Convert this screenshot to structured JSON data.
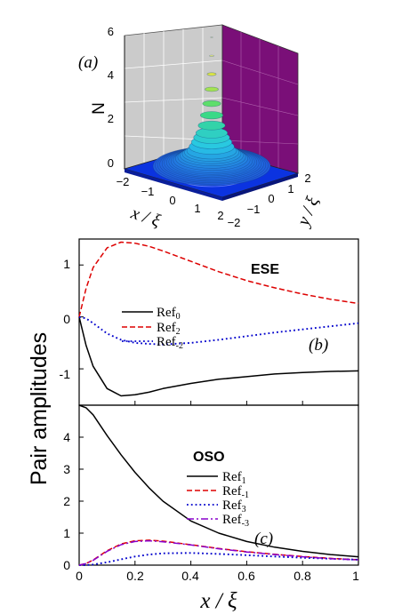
{
  "figure": {
    "ylabel": "Pair amplitudes",
    "xlabel": "x / ξ"
  },
  "chart_data": [
    {
      "type": "surface3d",
      "panel_label": "(a)",
      "zlabel": "N",
      "xlabel": "x / ξ",
      "ylabel": "y / ξ",
      "zlim": [
        0,
        6
      ],
      "z_ticks": [
        "6",
        "4",
        "2",
        "0"
      ],
      "x_ticks": [
        "−2",
        "−1",
        "0",
        "1",
        "2"
      ],
      "y_ticks": [
        "2",
        "1",
        "0",
        "−1",
        "−2"
      ],
      "xlim": [
        -2,
        2
      ],
      "ylim": [
        -2,
        2
      ],
      "peak": {
        "x": 0,
        "y": 0,
        "z": 6.0
      },
      "background_level": 0.1,
      "radial_profile": {
        "r": [
          0,
          0.1,
          0.2,
          0.3,
          0.5,
          0.8,
          1.2,
          2.0
        ],
        "z": [
          6.0,
          4.2,
          2.8,
          1.8,
          0.9,
          0.45,
          0.2,
          0.1
        ]
      }
    },
    {
      "type": "line",
      "panel_label": "(b)",
      "title": "ESE",
      "xlim": [
        0,
        1
      ],
      "ylim": [
        -1.7,
        1.5
      ],
      "y_ticks": [
        "1",
        "0",
        "-1"
      ],
      "grid": false,
      "legend": "center-left",
      "series": [
        {
          "name": "Ref0",
          "color": "#000000",
          "dash": "solid",
          "x": [
            0,
            0.025,
            0.05,
            0.1,
            0.15,
            0.2,
            0.25,
            0.3,
            0.4,
            0.5,
            0.6,
            0.7,
            0.8,
            0.9,
            1.0
          ],
          "y": [
            0,
            -0.55,
            -0.95,
            -1.38,
            -1.52,
            -1.5,
            -1.45,
            -1.38,
            -1.28,
            -1.2,
            -1.15,
            -1.1,
            -1.07,
            -1.05,
            -1.04
          ]
        },
        {
          "name": "Ref2",
          "color": "#dd0000",
          "dash": "dashed",
          "x": [
            0,
            0.025,
            0.05,
            0.1,
            0.15,
            0.2,
            0.25,
            0.3,
            0.4,
            0.5,
            0.6,
            0.7,
            0.8,
            0.9,
            1.0
          ],
          "y": [
            0,
            0.55,
            0.95,
            1.33,
            1.44,
            1.42,
            1.36,
            1.27,
            1.07,
            0.87,
            0.7,
            0.56,
            0.44,
            0.34,
            0.26
          ]
        },
        {
          "name": "Ref-2",
          "color": "#0000cc",
          "dash": "dotted",
          "x": [
            0,
            0.025,
            0.05,
            0.1,
            0.15,
            0.2,
            0.25,
            0.3,
            0.4,
            0.5,
            0.6,
            0.7,
            0.8,
            0.9,
            1.0
          ],
          "y": [
            0,
            -0.03,
            -0.12,
            -0.32,
            -0.44,
            -0.5,
            -0.52,
            -0.53,
            -0.5,
            -0.44,
            -0.37,
            -0.3,
            -0.24,
            -0.18,
            -0.12
          ]
        }
      ]
    },
    {
      "type": "line",
      "panel_label": "(c)",
      "title": "OSO",
      "xlim": [
        0,
        1
      ],
      "ylim": [
        0,
        5
      ],
      "y_ticks": [
        "4",
        "3",
        "2",
        "1",
        "0"
      ],
      "x_ticks": [
        "0",
        "0.2",
        "0.4",
        "0.6",
        "0.8",
        "1"
      ],
      "grid": false,
      "legend": "center",
      "series": [
        {
          "name": "Ref1",
          "color": "#000000",
          "dash": "solid",
          "x": [
            0,
            0.025,
            0.05,
            0.1,
            0.15,
            0.2,
            0.25,
            0.3,
            0.4,
            0.5,
            0.6,
            0.7,
            0.8,
            0.9,
            1.0
          ],
          "y": [
            5.0,
            4.92,
            4.7,
            4.05,
            3.45,
            2.9,
            2.42,
            2.0,
            1.38,
            1.0,
            0.74,
            0.56,
            0.43,
            0.33,
            0.26
          ]
        },
        {
          "name": "Ref-1",
          "color": "#dd0000",
          "dash": "dashed",
          "x": [
            0,
            0.025,
            0.05,
            0.1,
            0.15,
            0.2,
            0.25,
            0.3,
            0.4,
            0.5,
            0.6,
            0.7,
            0.8,
            0.9,
            1.0
          ],
          "y": [
            0,
            0.05,
            0.16,
            0.45,
            0.66,
            0.76,
            0.78,
            0.75,
            0.64,
            0.52,
            0.42,
            0.34,
            0.27,
            0.21,
            0.17
          ]
        },
        {
          "name": "Ref3",
          "color": "#0000cc",
          "dash": "dotted",
          "x": [
            0,
            0.025,
            0.05,
            0.1,
            0.15,
            0.2,
            0.25,
            0.3,
            0.4,
            0.5,
            0.6,
            0.7,
            0.8,
            0.9,
            1.0
          ],
          "y": [
            0,
            0.0,
            0.02,
            0.09,
            0.18,
            0.27,
            0.33,
            0.37,
            0.38,
            0.35,
            0.31,
            0.27,
            0.23,
            0.2,
            0.17
          ]
        },
        {
          "name": "Ref-3",
          "color": "#8800cc",
          "dash": "dashdot",
          "x": [
            0,
            0.025,
            0.05,
            0.1,
            0.15,
            0.2,
            0.25,
            0.3,
            0.4,
            0.5,
            0.6,
            0.7,
            0.8,
            0.9,
            1.0
          ],
          "y": [
            0,
            0.05,
            0.15,
            0.43,
            0.64,
            0.74,
            0.76,
            0.73,
            0.63,
            0.51,
            0.41,
            0.33,
            0.26,
            0.2,
            0.16
          ]
        }
      ]
    }
  ]
}
